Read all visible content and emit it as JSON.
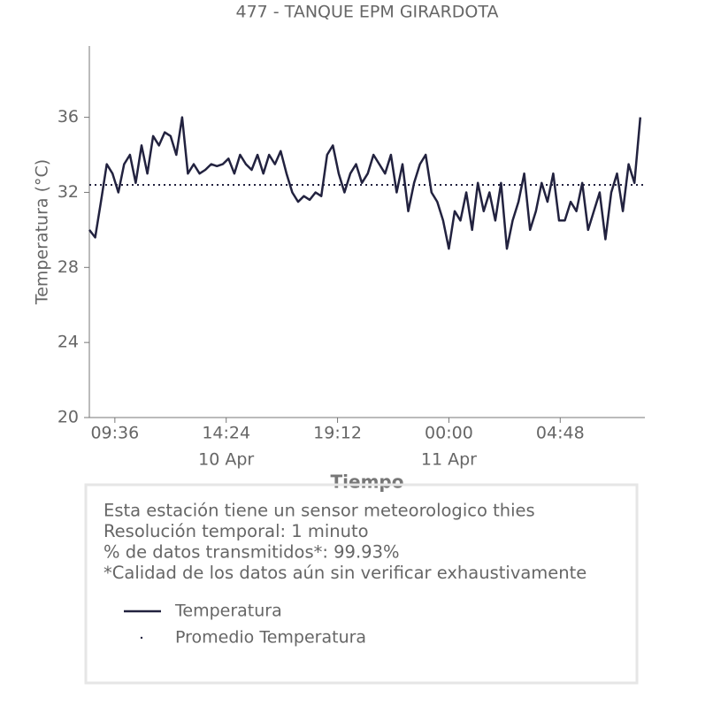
{
  "chart_data": {
    "type": "line",
    "title": "477 - TANQUE EPM GIRARDOTA",
    "xlabel": "Tiempo",
    "ylabel": "Temperatura (°C)",
    "x": [
      "10 Apr 08:30",
      "10 Apr 08:45",
      "10 Apr 09:00",
      "10 Apr 09:15",
      "10 Apr 09:30",
      "10 Apr 09:45",
      "10 Apr 10:00",
      "10 Apr 10:15",
      "10 Apr 10:30",
      "10 Apr 10:45",
      "10 Apr 11:00",
      "10 Apr 11:15",
      "10 Apr 11:30",
      "10 Apr 11:45",
      "10 Apr 12:00",
      "10 Apr 12:15",
      "10 Apr 12:30",
      "10 Apr 12:45",
      "10 Apr 13:00",
      "10 Apr 13:15",
      "10 Apr 13:30",
      "10 Apr 13:45",
      "10 Apr 14:00",
      "10 Apr 14:15",
      "10 Apr 14:30",
      "10 Apr 14:45",
      "10 Apr 15:00",
      "10 Apr 15:15",
      "10 Apr 15:30",
      "10 Apr 15:45",
      "10 Apr 16:00",
      "10 Apr 16:15",
      "10 Apr 16:30",
      "10 Apr 16:45",
      "10 Apr 17:00",
      "10 Apr 17:15",
      "10 Apr 17:30",
      "10 Apr 17:45",
      "10 Apr 18:00",
      "10 Apr 18:15",
      "10 Apr 18:30",
      "10 Apr 18:45",
      "10 Apr 19:00",
      "10 Apr 19:15",
      "10 Apr 19:30",
      "10 Apr 19:45",
      "10 Apr 20:00",
      "10 Apr 20:15",
      "10 Apr 20:30",
      "10 Apr 20:45",
      "10 Apr 21:00",
      "10 Apr 21:15",
      "10 Apr 21:30",
      "10 Apr 21:45",
      "10 Apr 22:00",
      "10 Apr 22:15",
      "10 Apr 22:30",
      "10 Apr 22:45",
      "10 Apr 23:00",
      "10 Apr 23:15",
      "10 Apr 23:30",
      "10 Apr 23:45",
      "11 Apr 00:00",
      "11 Apr 00:15",
      "11 Apr 00:30",
      "11 Apr 00:45",
      "11 Apr 01:00",
      "11 Apr 01:15",
      "11 Apr 01:30",
      "11 Apr 01:45",
      "11 Apr 02:00",
      "11 Apr 02:15",
      "11 Apr 02:30",
      "11 Apr 02:45",
      "11 Apr 03:00",
      "11 Apr 03:15",
      "11 Apr 03:30",
      "11 Apr 03:45",
      "11 Apr 04:00",
      "11 Apr 04:15",
      "11 Apr 04:30",
      "11 Apr 04:45",
      "11 Apr 05:00",
      "11 Apr 05:15",
      "11 Apr 05:30",
      "11 Apr 05:45",
      "11 Apr 06:00",
      "11 Apr 06:15",
      "11 Apr 06:30",
      "11 Apr 06:45",
      "11 Apr 07:00",
      "11 Apr 07:15",
      "11 Apr 07:30",
      "11 Apr 07:45",
      "11 Apr 08:00",
      "11 Apr 08:15"
    ],
    "series": [
      {
        "name": "Temperatura",
        "color": "#22223f",
        "values": [
          30.0,
          29.6,
          31.5,
          33.5,
          33.0,
          32.0,
          33.5,
          34.0,
          32.5,
          34.5,
          33.0,
          35.0,
          34.5,
          35.2,
          35.0,
          34.0,
          36.0,
          33.0,
          33.5,
          33.0,
          33.2,
          33.5,
          33.4,
          33.5,
          33.8,
          33.0,
          34.0,
          33.5,
          33.2,
          34.0,
          33.0,
          34.0,
          33.5,
          34.2,
          33.0,
          32.0,
          31.5,
          31.8,
          31.6,
          32.0,
          31.8,
          34.0,
          34.5,
          33.0,
          32.0,
          33.0,
          33.5,
          32.5,
          33.0,
          34.0,
          33.5,
          33.0,
          34.0,
          32.0,
          33.5,
          31.0,
          32.5,
          33.5,
          34.0,
          32.0,
          31.5,
          30.5,
          29.0,
          31.0,
          30.5,
          32.0,
          30.0,
          32.5,
          31.0,
          32.0,
          30.5,
          32.5,
          29.0,
          30.5,
          31.5,
          33.0,
          30.0,
          31.0,
          32.5,
          31.5,
          33.0,
          30.5,
          30.5,
          31.5,
          31.0,
          32.5,
          30.0,
          31.0,
          32.0,
          29.5,
          32.0,
          33.0,
          31.0,
          33.5,
          32.5,
          36.0
        ]
      }
    ],
    "reference_lines": [
      {
        "name": "Promedio Temperatura",
        "value": 32.4,
        "color": "#22223f",
        "style": "dotted"
      }
    ],
    "xlim": [
      "10 Apr 08:30",
      "11 Apr 08:27"
    ],
    "xticks": [
      {
        "value": "10 Apr 09:36",
        "label": "09:36"
      },
      {
        "value": "10 Apr 14:24",
        "label": "14:24"
      },
      {
        "value": "10 Apr 19:12",
        "label": "19:12"
      },
      {
        "value": "11 Apr 00:00",
        "label": "00:00"
      },
      {
        "value": "11 Apr 04:48",
        "label": "04:48"
      }
    ],
    "xticks_secondary": [
      {
        "value": "10 Apr 14:24",
        "label": "10 Apr"
      },
      {
        "value": "11 Apr 00:00",
        "label": "11 Apr"
      }
    ],
    "ylim": [
      20,
      39.8
    ],
    "yticks": [
      20,
      24,
      28,
      32,
      36
    ],
    "notes": [
      "Esta estación tiene un sensor meteorologico thies",
      "Resolución temporal: 1 minuto",
      "% de datos transmitidos*: 99.93%",
      "*Calidad de los datos aún sin verificar exhaustivamente"
    ]
  }
}
